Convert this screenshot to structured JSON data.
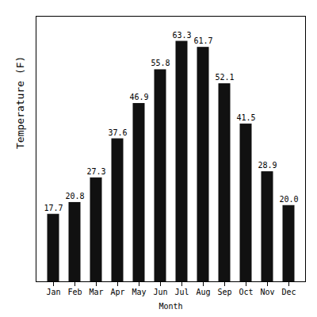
{
  "chart_data": {
    "type": "bar",
    "categories": [
      "Jan",
      "Feb",
      "Mar",
      "Apr",
      "May",
      "Jun",
      "Jul",
      "Aug",
      "Sep",
      "Oct",
      "Nov",
      "Dec"
    ],
    "values": [
      17.7,
      20.8,
      27.3,
      37.6,
      46.9,
      55.8,
      63.3,
      61.7,
      52.1,
      41.5,
      28.9,
      20.0
    ],
    "value_labels": [
      "17.7",
      "20.8",
      "27.3",
      "37.6",
      "46.9",
      "55.8",
      "63.3",
      "61.7",
      "52.1",
      "41.5",
      "28.9",
      "20.0"
    ],
    "color": "#111111",
    "xlabel": "Month",
    "ylabel": "Temperature (F)",
    "ylim": [
      0,
      70
    ],
    "yticks": [],
    "data_labels": true,
    "tick_labels": "x",
    "grid": false
  }
}
